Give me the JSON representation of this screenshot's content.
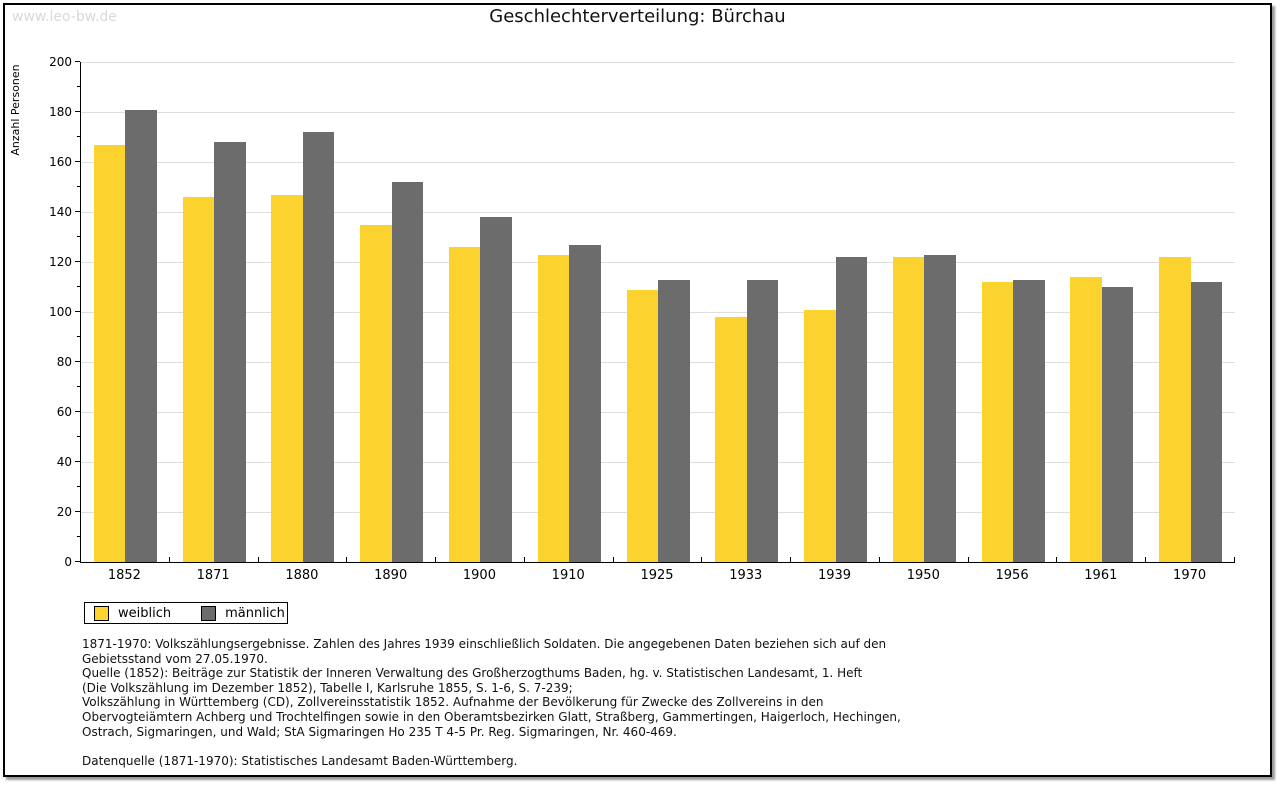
{
  "watermark": "www.leo-bw.de",
  "chart_data": {
    "type": "bar",
    "title": "Geschlechterverteilung: Bürchau",
    "ylabel": "Anzahl Personen",
    "xlabel": "",
    "ylim": [
      0,
      200
    ],
    "ytick_step": 20,
    "ytick_minor_step": 10,
    "grid": "horizontal-light",
    "gridline_color": "#dedede",
    "legend_position": "bottom-left",
    "categories": [
      "1852",
      "1871",
      "1880",
      "1890",
      "1900",
      "1910",
      "1925",
      "1933",
      "1939",
      "1950",
      "1956",
      "1961",
      "1970"
    ],
    "series": [
      {
        "name": "weiblich",
        "color": "#FCD32E",
        "values": [
          167,
          146,
          147,
          135,
          126,
          123,
          109,
          98,
          101,
          122,
          112,
          114,
          122
        ]
      },
      {
        "name": "männlich",
        "color": "#6C6C6C",
        "values": [
          181,
          168,
          172,
          152,
          138,
          127,
          113,
          113,
          122,
          123,
          113,
          110,
          112
        ]
      }
    ]
  },
  "footnotes": [
    "1871-1970: Volkszählungsergebnisse. Zahlen des Jahres 1939 einschließlich Soldaten. Die angegebenen Daten beziehen sich auf den",
    "Gebietsstand vom 27.05.1970.",
    "Quelle (1852): Beiträge zur Statistik der Inneren Verwaltung des Großherzogthums Baden, hg. v. Statistischen Landesamt, 1. Heft",
    "(Die Volkszählung im Dezember 1852), Tabelle I, Karlsruhe 1855, S. 1-6, S. 7-239;",
    "Volkszählung in Württemberg (CD), Zollvereinsstatistik 1852. Aufnahme der Bevölkerung für Zwecke des Zollvereins in den",
    "Obervogteiämtern Achberg und Trochtelfingen sowie in den Oberamtsbezirken Glatt, Straßberg, Gammertingen, Haigerloch, Hechingen,",
    "Ostrach, Sigmaringen, und Wald; StA Sigmaringen Ho 235 T 4-5 Pr. Reg. Sigmaringen, Nr. 460-469.",
    "",
    "Datenquelle (1871-1970): Statistisches Landesamt Baden-Württemberg."
  ]
}
